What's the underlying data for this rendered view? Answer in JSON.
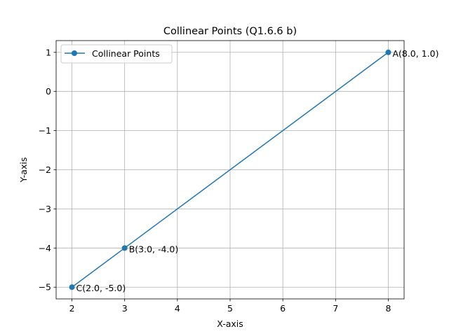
{
  "chart_data": {
    "type": "line",
    "title": "Collinear Points (Q1.6.6 b)",
    "xlabel": "X-axis",
    "ylabel": "Y-axis",
    "xlim": [
      1.7,
      8.3
    ],
    "ylim": [
      -5.3,
      1.3
    ],
    "xticks": [
      2,
      3,
      4,
      5,
      6,
      7,
      8
    ],
    "yticks": [
      1,
      0,
      -1,
      -2,
      -3,
      -4,
      -5
    ],
    "xtick_labels": [
      "2",
      "3",
      "4",
      "5",
      "6",
      "7",
      "8"
    ],
    "ytick_labels": [
      "1",
      "0",
      "−1",
      "−2",
      "−3",
      "−4",
      "−5"
    ],
    "grid": true,
    "legend_position": "top-left",
    "series": [
      {
        "name": "Collinear Points",
        "color": "#1f77b4",
        "marker": "circle",
        "x": [
          8.0,
          3.0,
          2.0
        ],
        "y": [
          1.0,
          -4.0,
          -5.0
        ]
      }
    ],
    "annotations": [
      {
        "text": "A(8.0, 1.0)",
        "x": 8.0,
        "y": 1.0
      },
      {
        "text": "B(3.0, -4.0)",
        "x": 3.0,
        "y": -4.0
      },
      {
        "text": "C(2.0, -5.0)",
        "x": 2.0,
        "y": -5.0
      }
    ]
  }
}
